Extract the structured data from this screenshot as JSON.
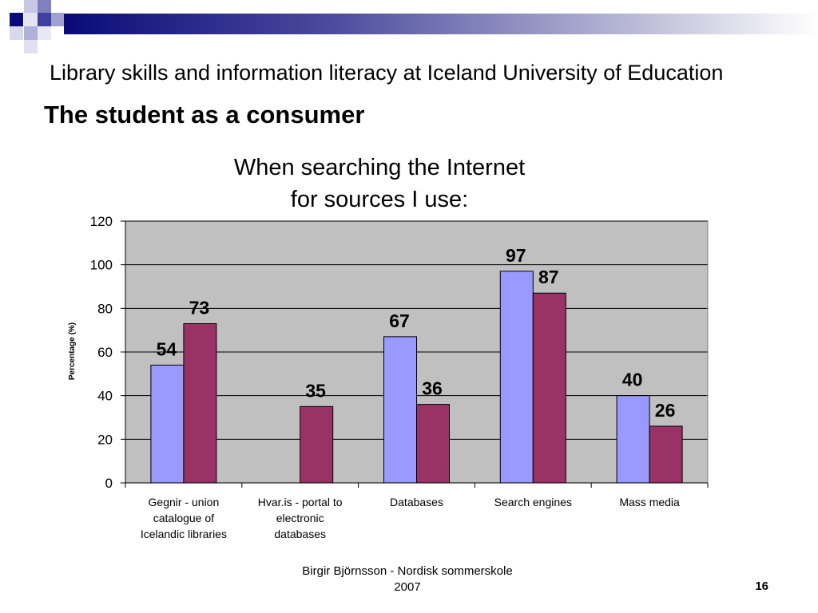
{
  "slide": {
    "subtitle": "Library skills and information literacy at Iceland University of Education",
    "title": "The student as a consumer",
    "footer_line1": "Birgir Björnsson - Nordisk sommerskole",
    "footer_line2": "2007",
    "page_number": "16"
  },
  "colors": {
    "series1": "#9999ff",
    "series2": "#993366",
    "plot_bg": "#c0c0c0",
    "header_bar": "#0a0a78"
  },
  "chart_data": {
    "type": "bar",
    "title_line1": "When searching the Internet",
    "title_line2": "for sources I use:",
    "ylabel": "Percentage (%)",
    "xlabel": "",
    "ylim": [
      0,
      120
    ],
    "yticks": [
      0,
      20,
      40,
      60,
      80,
      100,
      120
    ],
    "grid": true,
    "legend": "none",
    "categories": [
      [
        "Gegnir - union",
        "catalogue of",
        "Icelandic libraries"
      ],
      [
        "Hvar.is - portal to",
        "electronic",
        "databases"
      ],
      [
        "Databases"
      ],
      [
        "Search engines"
      ],
      [
        "Mass media"
      ]
    ],
    "series": [
      {
        "values": [
          54,
          null,
          67,
          97,
          40
        ]
      },
      {
        "values": [
          73,
          35,
          36,
          87,
          26
        ]
      }
    ]
  }
}
